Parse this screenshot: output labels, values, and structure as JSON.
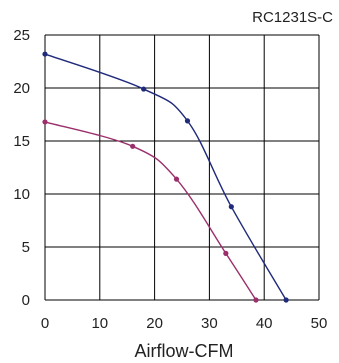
{
  "chart_data": {
    "type": "line",
    "title": "RC1231S-C",
    "xlabel": "Airflow-CFM",
    "ylabel": "",
    "xlim": [
      0,
      50
    ],
    "ylim": [
      0,
      25
    ],
    "x_ticks": [
      "0",
      "10",
      "20",
      "30",
      "40",
      "50"
    ],
    "y_ticks": [
      "0",
      "5",
      "10",
      "15",
      "20",
      "25"
    ],
    "grid": true,
    "legend": "none",
    "series": [
      {
        "color": "#1f2a7a",
        "x": [
          0,
          18,
          26,
          34,
          44
        ],
        "y": [
          23.2,
          19.9,
          16.9,
          8.8,
          0
        ]
      },
      {
        "color": "#9b2f6b",
        "x": [
          0,
          16,
          24,
          33,
          38.5
        ],
        "y": [
          16.8,
          14.5,
          11.4,
          4.4,
          0
        ]
      }
    ]
  }
}
